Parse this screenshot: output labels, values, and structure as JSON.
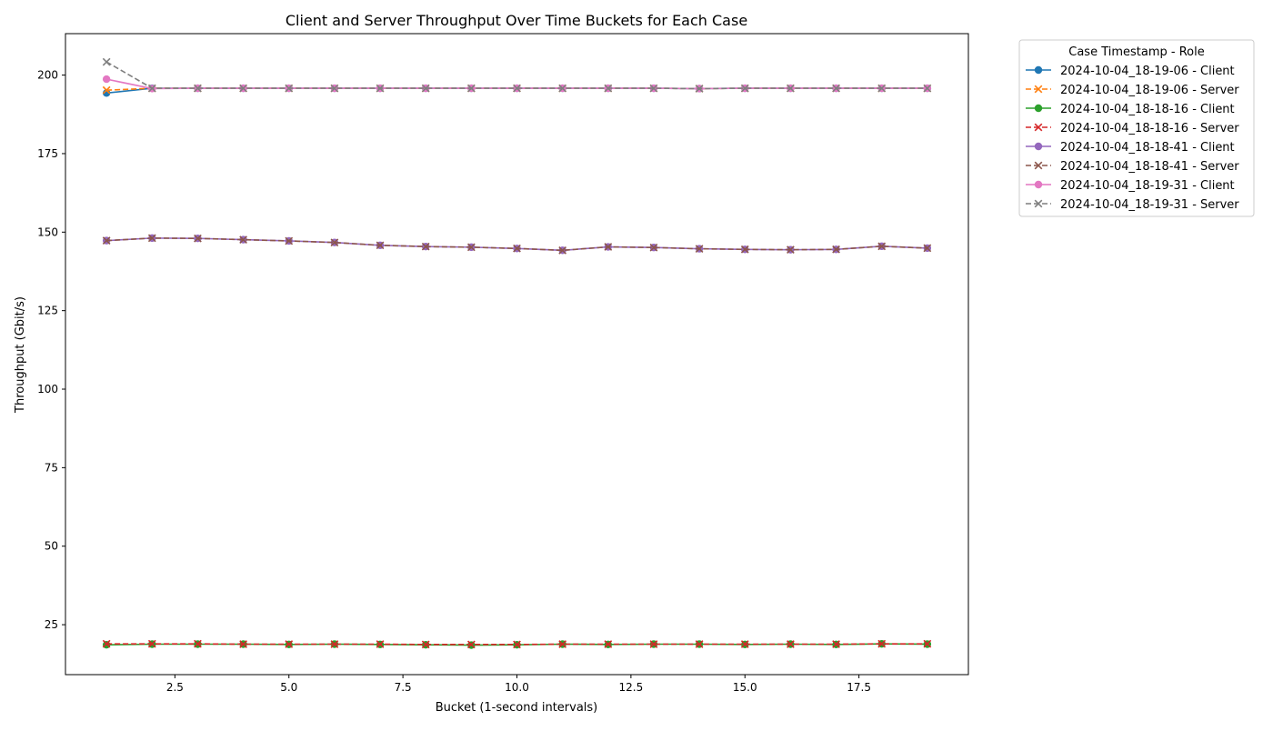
{
  "chart_data": {
    "type": "line",
    "title": "Client and Server Throughput Over Time Buckets for Each Case",
    "xlabel": "Bucket (1-second intervals)",
    "ylabel": "Throughput (Gbit/s)",
    "xlim": [
      0.1,
      19.9
    ],
    "ylim": [
      9.1,
      213.2
    ],
    "grid": false,
    "x_ticks": [
      2.5,
      5.0,
      7.5,
      10.0,
      12.5,
      15.0,
      17.5
    ],
    "x_tick_labels": [
      "2.5",
      "5.0",
      "7.5",
      "10.0",
      "12.5",
      "15.0",
      "17.5"
    ],
    "y_ticks": [
      25,
      50,
      75,
      100,
      125,
      150,
      175,
      200
    ],
    "y_tick_labels": [
      "25",
      "50",
      "75",
      "100",
      "125",
      "150",
      "175",
      "200"
    ],
    "legend": {
      "title": "Case Timestamp - Role",
      "placement": "outside-top-right"
    },
    "x": [
      1,
      2,
      3,
      4,
      5,
      6,
      7,
      8,
      9,
      10,
      11,
      12,
      13,
      14,
      15,
      16,
      17,
      18,
      19
    ],
    "series": [
      {
        "name": "2024-10-04_18-19-06 - Client",
        "color": "#1f77b4",
        "linestyle": "solid",
        "marker": "circle",
        "values": [
          194.3,
          195.8,
          195.8,
          195.8,
          195.8,
          195.8,
          195.8,
          195.8,
          195.8,
          195.8,
          195.8,
          195.8,
          195.8,
          195.7,
          195.8,
          195.8,
          195.8,
          195.8,
          195.8
        ]
      },
      {
        "name": "2024-10-04_18-19-06 - Server",
        "color": "#ff7f0e",
        "linestyle": "dashed",
        "marker": "x",
        "values": [
          195.2,
          195.8,
          195.8,
          195.8,
          195.8,
          195.8,
          195.8,
          195.8,
          195.8,
          195.8,
          195.8,
          195.8,
          195.8,
          195.7,
          195.8,
          195.8,
          195.8,
          195.8,
          195.8
        ]
      },
      {
        "name": "2024-10-04_18-18-16 - Client",
        "color": "#2ca02c",
        "linestyle": "solid",
        "marker": "circle",
        "values": [
          18.6,
          18.8,
          18.8,
          18.8,
          18.7,
          18.8,
          18.7,
          18.6,
          18.5,
          18.6,
          18.8,
          18.7,
          18.8,
          18.8,
          18.7,
          18.8,
          18.7,
          18.9,
          18.8
        ]
      },
      {
        "name": "2024-10-04_18-18-16 - Server",
        "color": "#d62728",
        "linestyle": "dashed",
        "marker": "x",
        "values": [
          18.9,
          18.9,
          18.9,
          18.8,
          18.8,
          18.8,
          18.8,
          18.7,
          18.7,
          18.7,
          18.8,
          18.8,
          18.8,
          18.8,
          18.8,
          18.8,
          18.8,
          18.9,
          18.9
        ]
      },
      {
        "name": "2024-10-04_18-18-41 - Client",
        "color": "#9467bd",
        "linestyle": "solid",
        "marker": "circle",
        "values": [
          147.3,
          148.1,
          148.0,
          147.6,
          147.2,
          146.7,
          145.8,
          145.4,
          145.2,
          144.8,
          144.2,
          145.3,
          145.1,
          144.7,
          144.5,
          144.4,
          144.5,
          145.5,
          144.9
        ]
      },
      {
        "name": "2024-10-04_18-18-41 - Server",
        "color": "#8c564b",
        "linestyle": "dashed",
        "marker": "x",
        "values": [
          147.3,
          148.1,
          148.0,
          147.6,
          147.2,
          146.7,
          145.8,
          145.4,
          145.2,
          144.8,
          144.2,
          145.3,
          145.1,
          144.7,
          144.5,
          144.4,
          144.5,
          145.5,
          144.9
        ]
      },
      {
        "name": "2024-10-04_18-19-31 - Client",
        "color": "#e377c2",
        "linestyle": "solid",
        "marker": "circle",
        "values": [
          198.7,
          195.7,
          195.8,
          195.8,
          195.8,
          195.8,
          195.8,
          195.8,
          195.8,
          195.8,
          195.8,
          195.8,
          195.8,
          195.7,
          195.8,
          195.8,
          195.8,
          195.8,
          195.8
        ]
      },
      {
        "name": "2024-10-04_18-19-31 - Server",
        "color": "#7f7f7f",
        "linestyle": "dashed",
        "marker": "x",
        "values": [
          204.2,
          195.8,
          195.8,
          195.8,
          195.8,
          195.8,
          195.8,
          195.8,
          195.8,
          195.8,
          195.8,
          195.8,
          195.8,
          195.7,
          195.8,
          195.8,
          195.8,
          195.8,
          195.8
        ]
      }
    ]
  }
}
